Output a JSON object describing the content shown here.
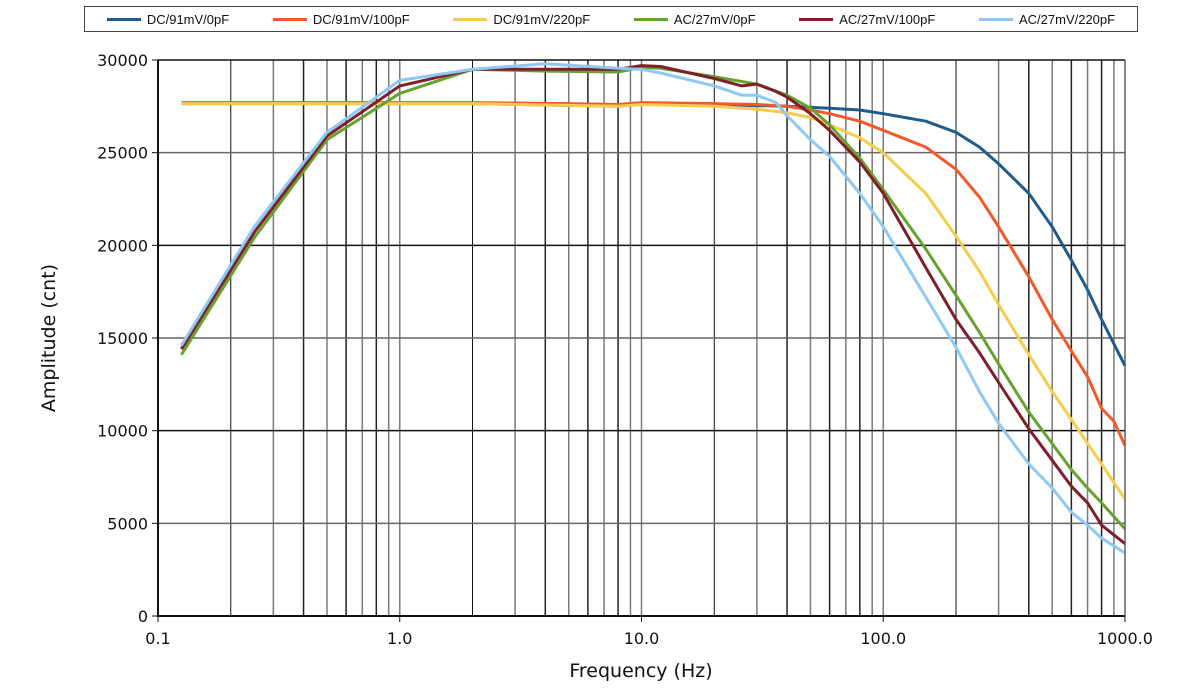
{
  "chart_data": {
    "type": "line",
    "title": "",
    "xlabel": "Frequency (Hz)",
    "ylabel": "Amplitude  (cnt)",
    "xscale": "log",
    "xlim": [
      0.1,
      1000
    ],
    "ylim": [
      0,
      30000
    ],
    "grid": true,
    "legend_position": "top",
    "x_tick_labels": [
      "0.1",
      "1.0",
      "10.0",
      "100.0",
      "1000.0"
    ],
    "x_ticks": [
      0.1,
      1,
      10,
      100,
      1000
    ],
    "y_tick_labels": [
      "0",
      "5000",
      "10000",
      "15000",
      "20000",
      "25000",
      "30000"
    ],
    "y_ticks": [
      0,
      5000,
      10000,
      15000,
      20000,
      25000,
      30000
    ],
    "series": [
      {
        "name": "DC/91mV/0pF",
        "color": "#1f5b8e",
        "x": [
          0.125,
          1,
          2,
          5,
          8,
          10,
          20,
          40,
          60,
          80,
          100,
          150,
          200,
          250,
          300,
          400,
          500,
          600,
          700,
          800,
          1000
        ],
        "y": [
          27650,
          27650,
          27650,
          27550,
          27500,
          27650,
          27600,
          27500,
          27400,
          27300,
          27100,
          26700,
          26100,
          25300,
          24400,
          22800,
          21000,
          19200,
          17600,
          16000,
          13500
        ]
      },
      {
        "name": "DC/91mV/100pF",
        "color": "#f4582a",
        "x": [
          0.125,
          1,
          2,
          5,
          8,
          10,
          20,
          30,
          40,
          50,
          60,
          80,
          100,
          150,
          200,
          250,
          300,
          400,
          500,
          600,
          700,
          800,
          900,
          1000
        ],
        "y": [
          27700,
          27700,
          27700,
          27650,
          27600,
          27700,
          27650,
          27600,
          27500,
          27300,
          27100,
          26700,
          26200,
          25300,
          24100,
          22600,
          21000,
          18300,
          16000,
          14300,
          12900,
          11200,
          10500,
          9200
        ]
      },
      {
        "name": "DC/91mV/220pF",
        "color": "#f7cb4b",
        "x": [
          0.125,
          1,
          2,
          5,
          8,
          10,
          20,
          30,
          40,
          50,
          60,
          80,
          100,
          150,
          200,
          250,
          300,
          400,
          500,
          600,
          700,
          800,
          1000
        ],
        "y": [
          27650,
          27650,
          27650,
          27550,
          27500,
          27600,
          27500,
          27350,
          27150,
          26900,
          26500,
          25800,
          25000,
          22800,
          20500,
          18600,
          16800,
          14100,
          12100,
          10600,
          9300,
          8200,
          6300
        ]
      },
      {
        "name": "AC/27mV/0pF",
        "color": "#65a32e",
        "x": [
          0.125,
          0.25,
          0.5,
          1,
          2,
          4,
          8,
          10,
          12,
          20,
          30,
          40,
          50,
          60,
          80,
          100,
          150,
          200,
          250,
          300,
          400,
          500,
          600,
          700,
          800,
          1000
        ],
        "y": [
          14100,
          20400,
          25700,
          28200,
          29500,
          29400,
          29350,
          29600,
          29550,
          29100,
          28700,
          28100,
          27400,
          26500,
          24700,
          23000,
          19800,
          17300,
          15300,
          13600,
          11000,
          9300,
          7900,
          6900,
          6100,
          4700
        ]
      },
      {
        "name": "AC/27mV/100pF",
        "color": "#7f1f2b",
        "x": [
          0.125,
          0.25,
          0.5,
          1,
          2,
          4,
          8,
          10,
          12,
          20,
          26,
          30,
          36,
          40,
          50,
          60,
          80,
          100,
          150,
          200,
          250,
          300,
          400,
          500,
          600,
          700,
          800,
          1000
        ],
        "y": [
          14400,
          20700,
          25900,
          28600,
          29500,
          29500,
          29500,
          29700,
          29650,
          29000,
          28600,
          28700,
          28300,
          28000,
          27100,
          26200,
          24500,
          22800,
          18800,
          16000,
          14200,
          12600,
          10100,
          8400,
          7000,
          6100,
          4900,
          3900
        ]
      },
      {
        "name": "AC/27mV/220pF",
        "color": "#8ec8f5",
        "x": [
          0.125,
          0.25,
          0.5,
          1,
          2,
          4,
          8,
          10,
          12,
          20,
          26,
          30,
          36,
          40,
          50,
          60,
          80,
          100,
          150,
          200,
          250,
          300,
          400,
          500,
          600,
          700,
          800,
          1000
        ],
        "y": [
          14600,
          21000,
          26100,
          28900,
          29500,
          29800,
          29550,
          29500,
          29300,
          28600,
          28100,
          28100,
          27700,
          27000,
          25700,
          24800,
          22800,
          21000,
          17200,
          14500,
          12100,
          10400,
          8200,
          6900,
          5600,
          4900,
          4200,
          3400
        ]
      }
    ]
  }
}
